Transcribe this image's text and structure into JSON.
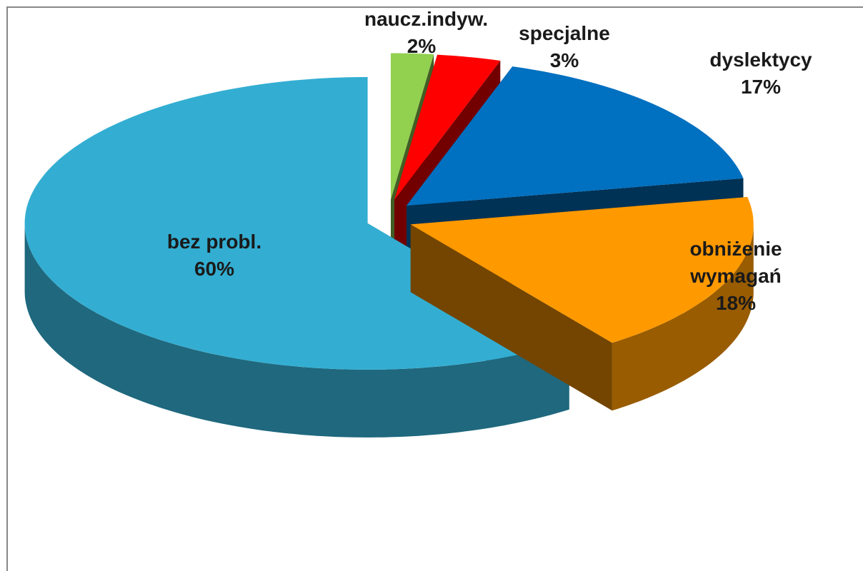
{
  "chart_data": {
    "type": "pie3d",
    "categories": [
      "naucz.indyw.",
      "specjalne",
      "dyslektycy",
      "obniżenie wymagań",
      "bez probl."
    ],
    "values": [
      2,
      3,
      17,
      18,
      60
    ],
    "value_labels": [
      "2%",
      "3%",
      "17%",
      "18%",
      "60%"
    ],
    "colors": [
      "#92d050",
      "#ff0000",
      "#0070c0",
      "#ff9900",
      "#33aed2"
    ]
  }
}
